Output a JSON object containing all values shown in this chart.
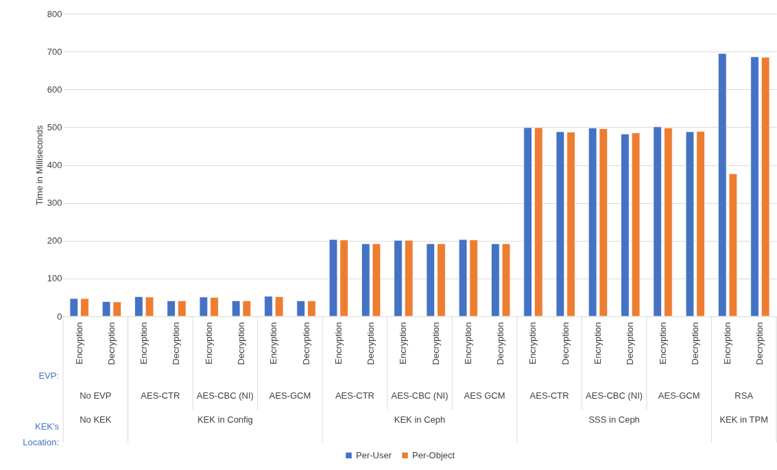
{
  "chart_data": {
    "type": "bar",
    "ylabel": "Time in Milliseconds",
    "categories": [
      "Encryption",
      "Decryption",
      "Encryption",
      "Decryption",
      "Encryption",
      "Decryption",
      "Encryption",
      "Decryption",
      "Encryption",
      "Decryption",
      "Encryption",
      "Decryption",
      "Encryption",
      "Decryption",
      "Encryption",
      "Decryption",
      "Encryption",
      "Decryption",
      "Encryption",
      "Decryption",
      "Encryption",
      "Decryption"
    ],
    "series": [
      {
        "name": "Per-User",
        "color": "#4472c4",
        "values": [
          47,
          39,
          52,
          41,
          51,
          41,
          53,
          41,
          203,
          192,
          201,
          192,
          203,
          192,
          499,
          488,
          498,
          482,
          501,
          488,
          695,
          686
        ]
      },
      {
        "name": "Per-Object",
        "color": "#ed7d31",
        "values": [
          47,
          38,
          51,
          41,
          50,
          41,
          52,
          41,
          202,
          192,
          201,
          192,
          202,
          192,
          499,
          487,
          496,
          485,
          498,
          489,
          377,
          685
        ]
      }
    ],
    "ylim": [
      0,
      800
    ],
    "yticks": [
      0,
      100,
      200,
      300,
      400,
      500,
      600,
      700,
      800
    ],
    "grid": "y",
    "legend": "bottom",
    "annotations": [
      "EVP:",
      "KEK's Location:",
      "No EVP",
      "AES-CTR",
      "AES-CBC (NI)",
      "AES-GCM",
      "AES-CTR",
      "AES-CBC (NI)",
      "AES GCM",
      "AES-CTR",
      "AES-CBC (NI)",
      "AES-GCM",
      "RSA",
      "No KEK",
      "KEK in Config",
      "KEK in Ceph",
      "SSS in Ceph",
      "KEK in TPM"
    ]
  }
}
